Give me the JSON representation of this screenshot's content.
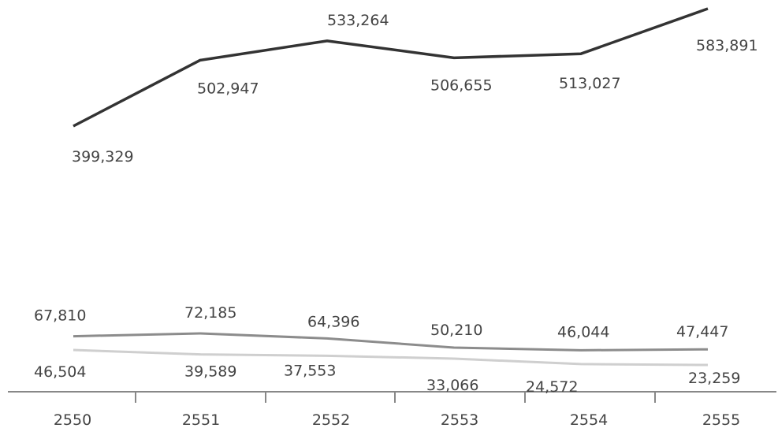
{
  "chart_data": {
    "type": "line",
    "categories": [
      "2550",
      "2551",
      "2552",
      "2553",
      "2554",
      "2555"
    ],
    "series": [
      {
        "values": [
          399329,
          502947,
          533264,
          506655,
          513027,
          583891
        ],
        "labels": [
          "399,329",
          "502,947",
          "533,264",
          "506,655",
          "513,027",
          "583,891"
        ],
        "color": "#333333"
      },
      {
        "values": [
          67810,
          72185,
          64396,
          50210,
          46044,
          47447
        ],
        "labels": [
          "67,810",
          "72,185",
          "64,396",
          "50,210",
          "46,044",
          "47,447"
        ],
        "color": "#8c8c8c"
      },
      {
        "values": [
          46504,
          39589,
          37553,
          33066,
          24572,
          23259
        ],
        "labels": [
          "46,504",
          "39,589",
          "37,553",
          "33,066",
          "24,572",
          "23,259"
        ],
        "color": "#cfcfcf"
      }
    ],
    "ylim": [
      0,
      600000
    ],
    "grid": false,
    "legend": "none",
    "axis_color": "#888888"
  }
}
